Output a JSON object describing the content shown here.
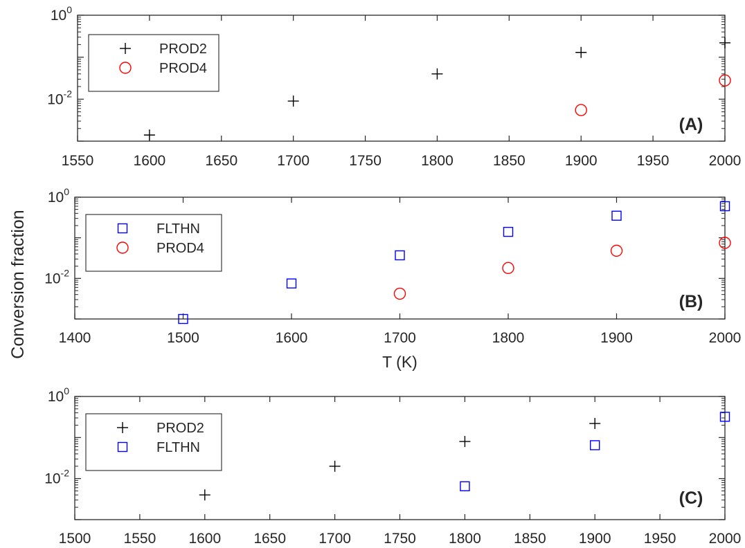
{
  "figure": {
    "ylabel": "Conversion fraction"
  },
  "chart_data": [
    {
      "type": "scatter",
      "panel_label": "(A)",
      "yscale": "log",
      "xlim": [
        1550,
        2000
      ],
      "ylim": [
        0.001,
        1
      ],
      "x_ticks": [
        1550,
        1600,
        1650,
        1700,
        1750,
        1800,
        1850,
        1900,
        1950,
        2000
      ],
      "y_tick_labels": [
        {
          "value": 1,
          "base": "10",
          "exp": "0"
        },
        {
          "value": 0.01,
          "base": "10",
          "exp": "-2"
        }
      ],
      "xlabel": "",
      "legend": {
        "location": "top-left"
      },
      "series": [
        {
          "name": "PROD2",
          "marker": "plus",
          "color": "#000000",
          "x": [
            1600,
            1700,
            1800,
            1900,
            2000
          ],
          "y": [
            0.0014,
            0.009,
            0.04,
            0.13,
            0.22
          ]
        },
        {
          "name": "PROD4",
          "marker": "circle",
          "color": "#ff0000",
          "x": [
            1900,
            2000
          ],
          "y": [
            0.0055,
            0.028
          ]
        }
      ]
    },
    {
      "type": "scatter",
      "panel_label": "(B)",
      "yscale": "log",
      "xlim": [
        1400,
        2000
      ],
      "ylim": [
        0.001,
        1
      ],
      "x_ticks": [
        1400,
        1500,
        1600,
        1700,
        1800,
        1900,
        2000
      ],
      "y_tick_labels": [
        {
          "value": 1,
          "base": "10",
          "exp": "0"
        },
        {
          "value": 0.01,
          "base": "10",
          "exp": "-2"
        }
      ],
      "xlabel": "T (K)",
      "legend": {
        "location": "top-left"
      },
      "series": [
        {
          "name": "FLTHN",
          "marker": "square",
          "color": "#0000ff",
          "x": [
            1500,
            1600,
            1700,
            1800,
            1900,
            2000
          ],
          "y": [
            0.001,
            0.0075,
            0.037,
            0.14,
            0.35,
            0.6
          ]
        },
        {
          "name": "PROD4",
          "marker": "circle",
          "color": "#ff0000",
          "x": [
            1700,
            1800,
            1900,
            2000
          ],
          "y": [
            0.0042,
            0.018,
            0.048,
            0.075
          ]
        }
      ]
    },
    {
      "type": "scatter",
      "panel_label": "(C)",
      "yscale": "log",
      "xlim": [
        1500,
        2000
      ],
      "ylim": [
        0.001,
        1
      ],
      "x_ticks": [
        1500,
        1550,
        1600,
        1650,
        1700,
        1750,
        1800,
        1850,
        1900,
        1950,
        2000
      ],
      "y_tick_labels": [
        {
          "value": 1,
          "base": "10",
          "exp": "0"
        },
        {
          "value": 0.01,
          "base": "10",
          "exp": "-2"
        }
      ],
      "xlabel": "",
      "legend": {
        "location": "top-left"
      },
      "series": [
        {
          "name": "PROD2",
          "marker": "plus",
          "color": "#000000",
          "x": [
            1600,
            1700,
            1800,
            1900
          ],
          "y": [
            0.004,
            0.02,
            0.08,
            0.22
          ]
        },
        {
          "name": "FLTHN",
          "marker": "square",
          "color": "#0000ff",
          "x": [
            1800,
            1900,
            2000
          ],
          "y": [
            0.0065,
            0.065,
            0.32
          ]
        }
      ]
    }
  ]
}
